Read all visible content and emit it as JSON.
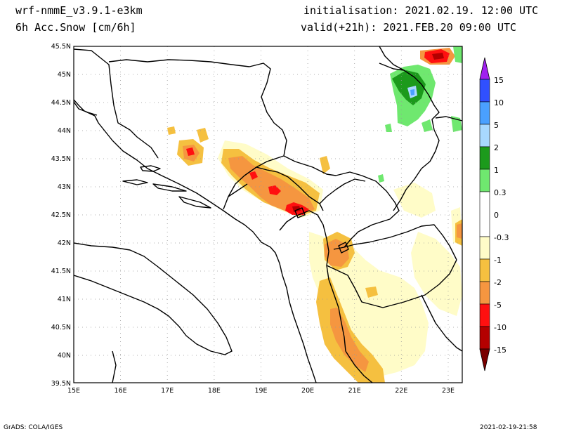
{
  "header": {
    "model": "wrf-nmmE_v3.9.1-e3km",
    "variable": "6h Acc.Snow [cm/6h]",
    "init": "initialisation: 2021.02.19. 12:00 UTC",
    "valid": "valid(+21h): 2021.FEB.20 09:00 UTC"
  },
  "map": {
    "lon_labels": [
      "15E",
      "16E",
      "17E",
      "18E",
      "19E",
      "20E",
      "21E",
      "22E",
      "23E"
    ],
    "lat_labels": [
      "45.5N",
      "45N",
      "44.5N",
      "44N",
      "43.5N",
      "43N",
      "42.5N",
      "42N",
      "41.5N",
      "41N",
      "40.5N",
      "40N",
      "39.5N"
    ],
    "lon_range": [
      15,
      23.3
    ],
    "lat_range": [
      39.5,
      45.5
    ]
  },
  "legend": {
    "labels": [
      "15",
      "10",
      "5",
      "2",
      "1",
      "0.3",
      "0",
      "-0.3",
      "-1",
      "-2",
      "-5",
      "-10",
      "-15"
    ],
    "colors": [
      "#a020f0",
      "#3050ff",
      "#4aa0ff",
      "#a8d8ff",
      "#1c9a1c",
      "#6fe86f",
      "#ffffff",
      "#fffcc8",
      "#f5c040",
      "#f59640",
      "#ff1010",
      "#b40000",
      "#7a0000"
    ]
  },
  "footer": {
    "credit": "GrADS: COLA/IGES",
    "timestamp": "2021-02-19-21:58"
  }
}
